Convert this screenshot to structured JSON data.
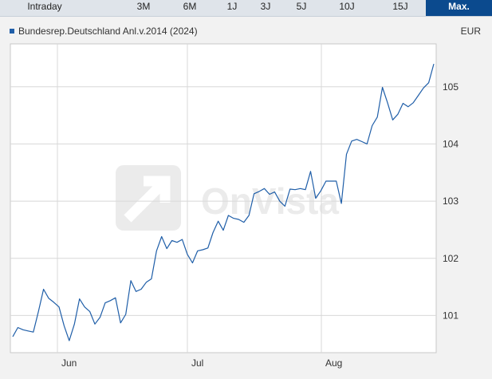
{
  "tabs": [
    {
      "label": "Intraday",
      "active": false
    },
    {
      "label": "3M",
      "active": false
    },
    {
      "label": "6M",
      "active": false
    },
    {
      "label": "1J",
      "active": false
    },
    {
      "label": "3J",
      "active": false
    },
    {
      "label": "5J",
      "active": false
    },
    {
      "label": "10J",
      "active": false
    },
    {
      "label": "15J",
      "active": false
    },
    {
      "label": "Max.",
      "active": true
    }
  ],
  "legend": {
    "label": "Bundesrep.Deutschland Anl.v.2014 (2024)"
  },
  "currency": "EUR",
  "watermark": "OnVista",
  "colors": {
    "line": "#1f5ea8",
    "active_tab": "#0b4a8e",
    "grid": "#d8d8d8"
  },
  "chart_data": {
    "type": "line",
    "title": "",
    "xlabel": "",
    "ylabel": "",
    "x_tick_labels": [
      "Jun",
      "Jul",
      "Aug"
    ],
    "y_tick_labels": [
      "101",
      "102",
      "103",
      "104",
      "105"
    ],
    "ylim": [
      100.35,
      105.75
    ],
    "grid": true,
    "series": [
      {
        "name": "Bundesrep.Deutschland Anl.v.2014 (2024)",
        "values": [
          100.63,
          100.79,
          100.75,
          100.73,
          100.71,
          101.07,
          101.46,
          101.3,
          101.23,
          101.15,
          100.82,
          100.56,
          100.85,
          101.29,
          101.15,
          101.07,
          100.85,
          100.97,
          101.22,
          101.26,
          101.31,
          100.87,
          101.02,
          101.61,
          101.42,
          101.46,
          101.58,
          101.64,
          102.13,
          102.38,
          102.17,
          102.31,
          102.28,
          102.33,
          102.07,
          101.92,
          102.13,
          102.15,
          102.18,
          102.45,
          102.65,
          102.49,
          102.75,
          102.7,
          102.68,
          102.63,
          102.75,
          103.13,
          103.17,
          103.22,
          103.12,
          103.16,
          103.0,
          102.91,
          103.21,
          103.2,
          103.22,
          103.2,
          103.52,
          103.05,
          103.18,
          103.35,
          103.35,
          103.35,
          102.96,
          103.82,
          104.05,
          104.08,
          104.04,
          104.0,
          104.32,
          104.47,
          104.99,
          104.72,
          104.42,
          104.52,
          104.71,
          104.65,
          104.72,
          104.85,
          104.98,
          105.07,
          105.4
        ]
      }
    ]
  }
}
